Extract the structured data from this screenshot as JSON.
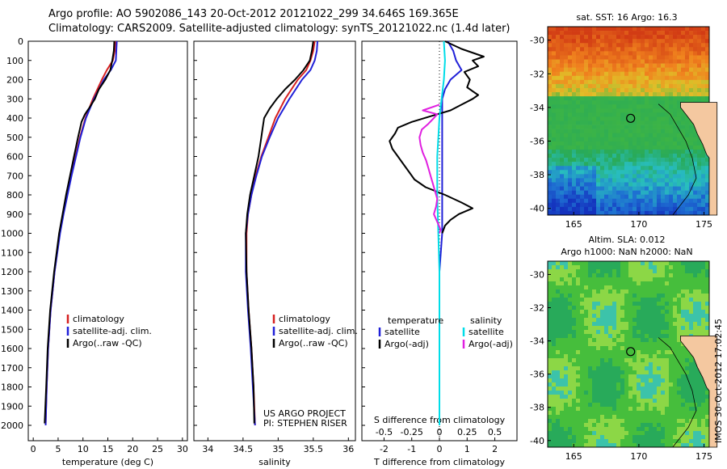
{
  "header": {
    "line1": "Argo profile: AO 5902086_143 20-Oct-2012 20121022_299 34.646S 169.365E",
    "line2": "Climatology: CARS2009. Satellite-adjusted climatology: synTS_20121022.nc (1.4d later)"
  },
  "colors": {
    "climatology": "#d62020",
    "satellite": "#2020d8",
    "argo": "#000000",
    "salinity_sat": "#00dde8",
    "salinity_argo": "#e020e0",
    "land": "#f4c8a0"
  },
  "chart_data": [
    {
      "type": "line",
      "name": "temperature-profile",
      "xlabel": "temperature (deg C)",
      "xlim": [
        -1,
        31
      ],
      "xticks": [
        0,
        5,
        10,
        15,
        20,
        25,
        30
      ],
      "ylim": [
        2080,
        0
      ],
      "yticks": [
        0,
        100,
        200,
        300,
        400,
        500,
        600,
        700,
        800,
        900,
        1000,
        1100,
        1200,
        1300,
        1400,
        1500,
        1600,
        1700,
        1800,
        1900,
        2000
      ],
      "legend": [
        "climatology",
        "satellite-adj. clim.",
        "Argo(..raw -QC)"
      ],
      "series": [
        {
          "name": "climatology",
          "color": "#d62020",
          "depth": [
            0,
            50,
            100,
            150,
            200,
            300,
            400,
            500,
            600,
            700,
            800,
            900,
            1000,
            1200,
            1400,
            1600,
            1800,
            2000
          ],
          "values": [
            16.5,
            16.4,
            16.0,
            14.8,
            13.8,
            12.0,
            10.5,
            9.4,
            8.5,
            7.6,
            6.8,
            6.0,
            5.3,
            4.3,
            3.5,
            3.0,
            2.7,
            2.5
          ]
        },
        {
          "name": "satellite-adj. clim.",
          "color": "#2020d8",
          "depth": [
            0,
            50,
            100,
            150,
            200,
            300,
            400,
            500,
            600,
            700,
            800,
            900,
            1000,
            1200,
            1400,
            1600,
            1800,
            2000
          ],
          "values": [
            16.8,
            16.7,
            16.6,
            15.6,
            14.2,
            12.2,
            10.6,
            9.5,
            8.6,
            7.7,
            6.9,
            6.1,
            5.4,
            4.3,
            3.5,
            3.0,
            2.7,
            2.5
          ]
        },
        {
          "name": "Argo(..raw -QC)",
          "color": "#000000",
          "depth": [
            0,
            50,
            100,
            150,
            200,
            250,
            300,
            350,
            380,
            420,
            500,
            600,
            700,
            800,
            900,
            1000,
            1200,
            1400,
            1600,
            1800,
            1990
          ],
          "values": [
            16.3,
            16.2,
            15.9,
            15.5,
            14.5,
            13.2,
            12.4,
            11.2,
            10.4,
            9.7,
            9.0,
            8.2,
            7.4,
            6.6,
            5.9,
            5.2,
            4.2,
            3.4,
            2.9,
            2.6,
            2.3
          ]
        }
      ],
      "annotation": []
    },
    {
      "type": "line",
      "name": "salinity-profile",
      "xlabel": "salinity",
      "xlim": [
        33.8,
        36.1
      ],
      "xticks": [
        34,
        34.5,
        35,
        35.5,
        36
      ],
      "ylim": [
        2080,
        0
      ],
      "legend": [
        "climatology",
        "satellite-adj. clim.",
        "Argo(..raw -QC)"
      ],
      "series": [
        {
          "name": "climatology",
          "color": "#d62020",
          "depth": [
            0,
            50,
            100,
            150,
            200,
            300,
            400,
            500,
            600,
            700,
            800,
            900,
            1000,
            1200,
            1400,
            1600,
            1800,
            2000
          ],
          "values": [
            35.52,
            35.5,
            35.46,
            35.4,
            35.28,
            35.1,
            34.96,
            34.86,
            34.76,
            34.68,
            34.62,
            34.57,
            34.55,
            34.55,
            34.58,
            34.62,
            34.65,
            34.67
          ]
        },
        {
          "name": "satellite-adj. clim.",
          "color": "#2020d8",
          "depth": [
            0,
            50,
            100,
            150,
            200,
            300,
            400,
            500,
            600,
            700,
            800,
            900,
            1000,
            1200,
            1400,
            1600,
            1800,
            2000
          ],
          "values": [
            35.56,
            35.55,
            35.52,
            35.46,
            35.34,
            35.16,
            35.0,
            34.88,
            34.77,
            34.69,
            34.62,
            34.57,
            34.54,
            34.54,
            34.57,
            34.61,
            34.64,
            34.67
          ]
        },
        {
          "name": "Argo(..raw -QC)",
          "color": "#000000",
          "depth": [
            0,
            50,
            100,
            150,
            200,
            250,
            300,
            350,
            400,
            450,
            500,
            600,
            700,
            800,
            900,
            1000,
            1200,
            1400,
            1600,
            1800,
            1990
          ],
          "values": [
            35.5,
            35.48,
            35.45,
            35.36,
            35.24,
            35.1,
            34.98,
            34.88,
            34.8,
            34.78,
            34.76,
            34.72,
            34.66,
            34.6,
            34.56,
            34.54,
            34.55,
            34.58,
            34.62,
            34.65,
            34.66
          ]
        }
      ],
      "annotation": [
        "US ARGO PROJECT",
        "PI: STEPHEN RISER"
      ]
    },
    {
      "type": "line",
      "name": "difference-profile",
      "xlabel_top": "S difference from climatology",
      "xticks_top": [
        "-0.5",
        "-0.25",
        "0",
        "0.25",
        "0.5"
      ],
      "xlabel": "T difference from climatology",
      "xticks": [
        -2,
        -1,
        0,
        1,
        2
      ],
      "xlim": [
        -2.8,
        2.8
      ],
      "ylim": [
        2080,
        0
      ],
      "legend_temperature": [
        "temperature",
        "satellite",
        "Argo(-adj)"
      ],
      "legend_salinity": [
        "salinity",
        "satellite",
        "Argo(-adj)"
      ],
      "series": [
        {
          "name": "temperature satellite",
          "color": "#2020d8",
          "depth": [
            0,
            50,
            100,
            150,
            200,
            250,
            300,
            400,
            500,
            600,
            700,
            800,
            900,
            1000,
            1200,
            1400,
            1600,
            1800,
            2000
          ],
          "values": [
            0.3,
            0.5,
            0.6,
            0.8,
            0.4,
            0.2,
            0.1,
            0.1,
            0.1,
            0.1,
            0.1,
            0.1,
            0.1,
            0.1,
            0.0,
            0.0,
            0.0,
            0.0,
            0.0
          ]
        },
        {
          "name": "temperature Argo(-adj)",
          "color": "#000000",
          "depth": [
            0,
            40,
            80,
            100,
            130,
            160,
            200,
            240,
            260,
            280,
            300,
            330,
            360,
            390,
            420,
            450,
            480,
            520,
            560,
            600,
            640,
            680,
            720,
            760,
            800,
            840,
            870,
            900,
            930,
            960,
            1000
          ],
          "values": [
            0.2,
            0.8,
            1.6,
            1.2,
            1.4,
            0.9,
            1.1,
            1.0,
            1.2,
            1.4,
            1.2,
            0.8,
            0.4,
            -0.3,
            -1.0,
            -1.5,
            -1.6,
            -1.8,
            -1.7,
            -1.5,
            -1.3,
            -1.1,
            -0.9,
            -0.5,
            0.2,
            0.8,
            1.2,
            0.7,
            0.4,
            0.2,
            0.1
          ]
        },
        {
          "name": "salinity satellite",
          "color": "#00dde8",
          "depth": [
            0,
            100,
            200,
            300,
            400,
            600,
            800,
            1000,
            1200,
            1400,
            1600,
            1800,
            2000
          ],
          "values": [
            0.04,
            0.05,
            0.04,
            0.02,
            0.0,
            -0.02,
            -0.02,
            -0.01,
            0.0,
            0.0,
            0.0,
            0.0,
            0.0
          ]
        },
        {
          "name": "salinity Argo(-adj)",
          "color": "#e020e0",
          "depth": [
            330,
            360,
            380,
            400,
            430,
            460,
            500,
            540,
            580,
            620,
            660,
            700,
            740,
            780,
            820,
            860,
            900,
            940,
            980,
            1000
          ],
          "values": [
            0.0,
            -0.15,
            -0.02,
            -0.05,
            -0.1,
            -0.16,
            -0.18,
            -0.17,
            -0.15,
            -0.12,
            -0.1,
            -0.08,
            -0.06,
            -0.04,
            -0.02,
            -0.03,
            -0.05,
            -0.02,
            0.01,
            0.0
          ]
        }
      ]
    },
    {
      "type": "heatmap",
      "name": "sst-map",
      "title": "sat. SST: 16 Argo: 16.3",
      "xticks": [
        165,
        170,
        175
      ],
      "yticks": [
        -30,
        -32,
        -34,
        -36,
        -38,
        -40
      ],
      "marker": {
        "lon": 169.365,
        "lat": -34.646
      }
    },
    {
      "type": "heatmap",
      "name": "sla-map",
      "title1": "Altim. SLA: 0.012",
      "title2": "Argo h1000: NaN h2000: NaN",
      "xticks": [
        165,
        170,
        175
      ],
      "yticks": [
        -30,
        -32,
        -34,
        -36,
        -38,
        -40
      ],
      "marker": {
        "lon": 169.365,
        "lat": -34.646
      }
    }
  ],
  "footer": {
    "stamp": "IMOS 30-Oct-2012 17:02:45"
  }
}
